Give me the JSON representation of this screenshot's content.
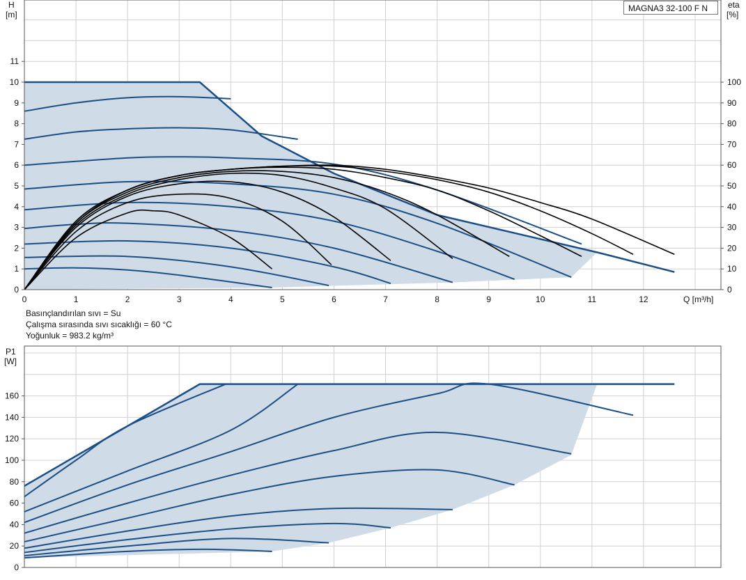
{
  "labels": {
    "h_axis": "H",
    "h_unit": "[m]",
    "eta_axis": "eta",
    "eta_unit": "[%]",
    "q_axis": "Q [m³/h]",
    "p_axis": "P1",
    "p_unit": "[W]",
    "model": "MAGNA3 32-100 F N",
    "note1": "Basınçlandırılan sıvı = Su",
    "note2": "Çalışma sırasında sıvı sıcaklığı = 60 °C",
    "note3": "Yoğunluk = 983.2 kg/m³"
  },
  "colors": {
    "curve": "#1c4e86",
    "area": "#cfdbe6",
    "eta": "#000000",
    "grid": "#d0d0d0"
  },
  "chart_data": [
    {
      "type": "line",
      "xlabel": "Q [m³/h]",
      "ylabel": "H [m]",
      "y2label": "eta [%]",
      "xlim": [
        0,
        13.5
      ],
      "ylim": [
        0,
        14
      ],
      "y2lim": [
        0,
        140
      ],
      "xticks": [
        "0",
        "1",
        "2",
        "3",
        "4",
        "5",
        "6",
        "7",
        "8",
        "9",
        "10",
        "11",
        "12"
      ],
      "yticks": [
        "0",
        "1",
        "2",
        "3",
        "4",
        "5",
        "6",
        "7",
        "8",
        "9",
        "10",
        "11"
      ],
      "y2ticks": [
        "0",
        "10",
        "20",
        "30",
        "40",
        "50",
        "60",
        "70",
        "80",
        "90",
        "100"
      ],
      "grid": true,
      "operating_area": [
        [
          0,
          10
        ],
        [
          3.4,
          10
        ],
        [
          4.6,
          7.4
        ],
        [
          6.0,
          5.6
        ],
        [
          8.0,
          3.6
        ],
        [
          11.1,
          1.8
        ],
        [
          10.6,
          0.6
        ],
        [
          8.3,
          0.35
        ],
        [
          4.8,
          0.1
        ],
        [
          0,
          0
        ]
      ],
      "max_curve": {
        "x": [
          0,
          3.4,
          4.6,
          6.0,
          8.0,
          11.1,
          12.6
        ],
        "y": [
          10,
          10,
          7.4,
          5.6,
          3.6,
          1.8,
          0.85
        ]
      },
      "series": [
        {
          "x": [
            0,
            1,
            2,
            3,
            4
          ],
          "y": [
            8.6,
            9.0,
            9.25,
            9.3,
            9.2
          ]
        },
        {
          "x": [
            0,
            1,
            2,
            3,
            4,
            5.3
          ],
          "y": [
            7.25,
            7.6,
            7.75,
            7.8,
            7.7,
            7.25
          ]
        },
        {
          "x": [
            0,
            2,
            3,
            4,
            6,
            8,
            10.8
          ],
          "y": [
            6.0,
            6.35,
            6.4,
            6.35,
            6.05,
            4.8,
            2.2
          ]
        },
        {
          "x": [
            0,
            2,
            4,
            6,
            8,
            10.6
          ],
          "y": [
            4.85,
            5.2,
            5.1,
            4.6,
            3.2,
            0.6
          ]
        },
        {
          "x": [
            0,
            2,
            4,
            6,
            8,
            9.5
          ],
          "y": [
            3.85,
            4.2,
            4.0,
            3.3,
            1.85,
            0.5
          ]
        },
        {
          "x": [
            0,
            1,
            2,
            4,
            6,
            8.3
          ],
          "y": [
            2.95,
            3.15,
            3.2,
            2.85,
            2.0,
            0.35
          ]
        },
        {
          "x": [
            0,
            2,
            4,
            6,
            7.1
          ],
          "y": [
            2.2,
            2.35,
            2.0,
            1.1,
            0.3
          ]
        },
        {
          "x": [
            0,
            2,
            4,
            5.9
          ],
          "y": [
            1.55,
            1.6,
            1.1,
            0.2
          ]
        },
        {
          "x": [
            0,
            1,
            2,
            3,
            4.8
          ],
          "y": [
            1.0,
            1.05,
            0.95,
            0.7,
            0.1
          ]
        }
      ],
      "eta_series": [
        {
          "x": [
            0,
            1,
            2,
            2.5,
            3,
            4,
            4.8
          ],
          "y": [
            0,
            25,
            37,
            38,
            36,
            25,
            10
          ]
        },
        {
          "x": [
            0,
            1,
            2,
            3,
            4,
            5,
            5.95
          ],
          "y": [
            0,
            28,
            42,
            46,
            44,
            33,
            12
          ]
        },
        {
          "x": [
            0,
            1,
            2,
            3,
            4,
            5,
            6,
            7.1
          ],
          "y": [
            0,
            30,
            45,
            51,
            52,
            47,
            35,
            14
          ]
        },
        {
          "x": [
            0,
            1,
            2,
            3,
            4,
            5,
            6,
            7,
            8.3
          ],
          "y": [
            0,
            31,
            46,
            53,
            56,
            55,
            49,
            39,
            15
          ]
        },
        {
          "x": [
            0,
            1,
            2,
            3,
            4,
            5,
            6,
            7,
            8,
            9.4
          ],
          "y": [
            0,
            32,
            47,
            54,
            57,
            57,
            54,
            47,
            36,
            16
          ]
        },
        {
          "x": [
            0,
            1,
            2,
            3,
            4,
            5,
            6,
            7,
            8,
            9,
            10,
            10.8
          ],
          "y": [
            0,
            32,
            48,
            55,
            58,
            59,
            58,
            54,
            48,
            38,
            26,
            16
          ]
        },
        {
          "x": [
            0,
            1,
            2,
            3,
            4,
            5,
            6,
            7,
            8,
            9,
            10,
            11,
            11.8
          ],
          "y": [
            0,
            33,
            48,
            55,
            58,
            59.5,
            59.5,
            57,
            53,
            47,
            38,
            27,
            17
          ]
        },
        {
          "x": [
            0,
            1,
            2,
            3,
            4,
            5,
            6,
            7,
            8,
            9,
            10,
            11,
            12.6
          ],
          "y": [
            0,
            33,
            48,
            55,
            58,
            59.5,
            60,
            58,
            54,
            49,
            42,
            34,
            17
          ]
        }
      ]
    },
    {
      "type": "line",
      "xlabel": "Q [m³/h]",
      "ylabel": "P1 [W]",
      "xlim": [
        0,
        13.5
      ],
      "ylim": [
        0,
        180
      ],
      "yticks": [
        "0",
        "20",
        "40",
        "60",
        "80",
        "100",
        "120",
        "140",
        "160"
      ],
      "grid": true,
      "operating_area": [
        [
          0,
          9
        ],
        [
          0,
          76
        ],
        [
          3.4,
          171
        ],
        [
          11.1,
          171
        ],
        [
          10.6,
          105
        ],
        [
          9.5,
          77
        ],
        [
          8.3,
          54
        ],
        [
          7.1,
          37
        ],
        [
          5.9,
          23
        ],
        [
          4.8,
          15
        ],
        [
          0,
          9
        ]
      ],
      "max_curve": {
        "x": [
          0,
          3.4,
          12.6
        ],
        "y": [
          76,
          171,
          171
        ]
      },
      "series": [
        {
          "x": [
            0,
            1,
            2,
            3.9
          ],
          "y": [
            66,
            100,
            132,
            171
          ]
        },
        {
          "x": [
            0,
            2,
            4,
            5.3
          ],
          "y": [
            52,
            90,
            128,
            171
          ]
        },
        {
          "x": [
            0,
            2,
            4,
            6,
            8,
            9.0,
            11.8
          ],
          "y": [
            42,
            77,
            108,
            140,
            162,
            171,
            142
          ]
        },
        {
          "x": [
            0,
            2,
            4,
            6,
            8,
            10.6
          ],
          "y": [
            32,
            60,
            86,
            109,
            126,
            106
          ]
        },
        {
          "x": [
            0,
            2,
            4,
            6,
            8,
            9.5
          ],
          "y": [
            24,
            46,
            68,
            85,
            91,
            77
          ]
        },
        {
          "x": [
            0,
            2,
            4,
            6,
            8.3
          ],
          "y": [
            18,
            34,
            48,
            55,
            54
          ]
        },
        {
          "x": [
            0,
            2,
            4,
            6,
            7.1
          ],
          "y": [
            14,
            26,
            36,
            41,
            37
          ]
        },
        {
          "x": [
            0,
            2,
            4,
            5.9
          ],
          "y": [
            11,
            20,
            27,
            23
          ]
        },
        {
          "x": [
            0,
            2,
            3.5,
            4.8
          ],
          "y": [
            9,
            15,
            17,
            15
          ]
        }
      ]
    }
  ]
}
